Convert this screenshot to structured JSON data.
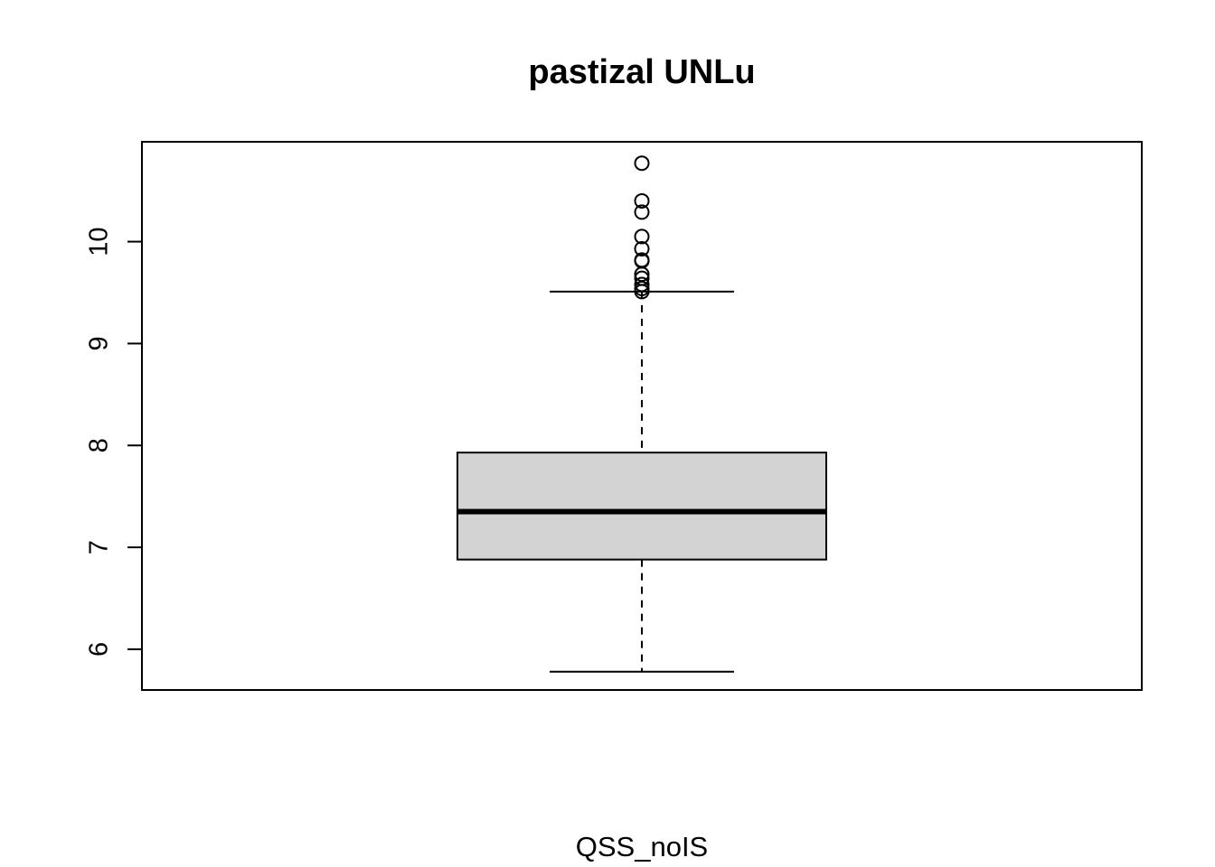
{
  "chart_data": {
    "type": "boxplot",
    "title": "pastizal UNLu",
    "xlabel": "QSS_noIS",
    "ylabel": "",
    "ylim": [
      5.6,
      10.98
    ],
    "yticks": [
      6,
      7,
      8,
      9,
      10
    ],
    "grid": false,
    "series": [
      {
        "whisker_low": 5.78,
        "q1": 6.88,
        "median": 7.35,
        "q3": 7.93,
        "whisker_high": 9.51,
        "outliers": [
          9.51,
          9.54,
          9.58,
          9.64,
          9.68,
          9.81,
          9.82,
          9.93,
          10.05,
          10.29,
          10.4,
          10.77
        ]
      }
    ],
    "colors": {
      "box_fill": "#d3d3d3",
      "stroke": "#000000"
    }
  }
}
